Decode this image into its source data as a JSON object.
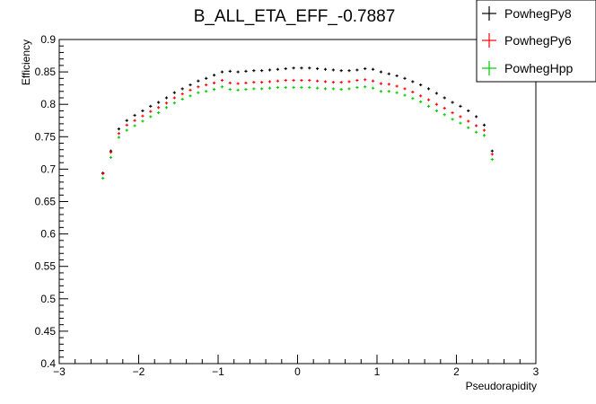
{
  "chart_data": {
    "type": "scatter",
    "title": "B_ALL_ETA_EFF_-0.7887",
    "xlabel": "Pseudorapidity",
    "ylabel": "Efficiency",
    "xlim": [
      -3,
      3
    ],
    "ylim": [
      0.4,
      0.9
    ],
    "x_ticks": [
      "−3",
      "−2",
      "−1",
      "0",
      "1",
      "2",
      "3"
    ],
    "y_ticks": [
      "0.4",
      "0.45",
      "0.5",
      "0.55",
      "0.6",
      "0.65",
      "0.7",
      "0.75",
      "0.8",
      "0.85",
      "0.9"
    ],
    "legend_position": "top-right",
    "grid": false,
    "x": [
      -2.45,
      -2.35,
      -2.25,
      -2.15,
      -2.05,
      -1.95,
      -1.85,
      -1.75,
      -1.65,
      -1.55,
      -1.45,
      -1.35,
      -1.25,
      -1.15,
      -1.05,
      -0.95,
      -0.85,
      -0.75,
      -0.65,
      -0.55,
      -0.45,
      -0.35,
      -0.25,
      -0.15,
      -0.05,
      0.05,
      0.15,
      0.25,
      0.35,
      0.45,
      0.55,
      0.65,
      0.75,
      0.85,
      0.95,
      1.05,
      1.15,
      1.25,
      1.35,
      1.45,
      1.55,
      1.65,
      1.75,
      1.85,
      1.95,
      2.05,
      2.15,
      2.25,
      2.35,
      2.45
    ],
    "series": [
      {
        "name": "PowhegPy8",
        "color": "#000000",
        "values": [
          0.694,
          0.728,
          0.762,
          0.775,
          0.783,
          0.79,
          0.797,
          0.803,
          0.81,
          0.818,
          0.824,
          0.83,
          0.836,
          0.84,
          0.845,
          0.85,
          0.851,
          0.85,
          0.851,
          0.852,
          0.852,
          0.853,
          0.854,
          0.855,
          0.856,
          0.856,
          0.856,
          0.855,
          0.854,
          0.853,
          0.852,
          0.852,
          0.853,
          0.855,
          0.854,
          0.85,
          0.847,
          0.844,
          0.84,
          0.835,
          0.83,
          0.824,
          0.817,
          0.81,
          0.803,
          0.797,
          0.79,
          0.781,
          0.768,
          0.728
        ]
      },
      {
        "name": "PowhegPy6",
        "color": "#ff0000",
        "values": [
          0.693,
          0.726,
          0.755,
          0.768,
          0.775,
          0.782,
          0.789,
          0.795,
          0.802,
          0.81,
          0.816,
          0.822,
          0.827,
          0.83,
          0.833,
          0.837,
          0.833,
          0.832,
          0.833,
          0.834,
          0.834,
          0.835,
          0.836,
          0.837,
          0.837,
          0.837,
          0.837,
          0.836,
          0.835,
          0.834,
          0.834,
          0.835,
          0.837,
          0.838,
          0.836,
          0.832,
          0.831,
          0.828,
          0.824,
          0.819,
          0.813,
          0.807,
          0.8,
          0.794,
          0.787,
          0.781,
          0.774,
          0.767,
          0.76,
          0.723
        ]
      },
      {
        "name": "PowhegHpp",
        "color": "#00cc00",
        "values": [
          0.686,
          0.718,
          0.749,
          0.76,
          0.767,
          0.774,
          0.781,
          0.787,
          0.795,
          0.802,
          0.808,
          0.813,
          0.818,
          0.82,
          0.823,
          0.827,
          0.823,
          0.822,
          0.823,
          0.824,
          0.824,
          0.825,
          0.826,
          0.826,
          0.826,
          0.826,
          0.826,
          0.825,
          0.824,
          0.824,
          0.823,
          0.824,
          0.826,
          0.827,
          0.825,
          0.82,
          0.82,
          0.818,
          0.814,
          0.809,
          0.804,
          0.797,
          0.79,
          0.784,
          0.777,
          0.771,
          0.764,
          0.757,
          0.752,
          0.715
        ]
      }
    ]
  }
}
